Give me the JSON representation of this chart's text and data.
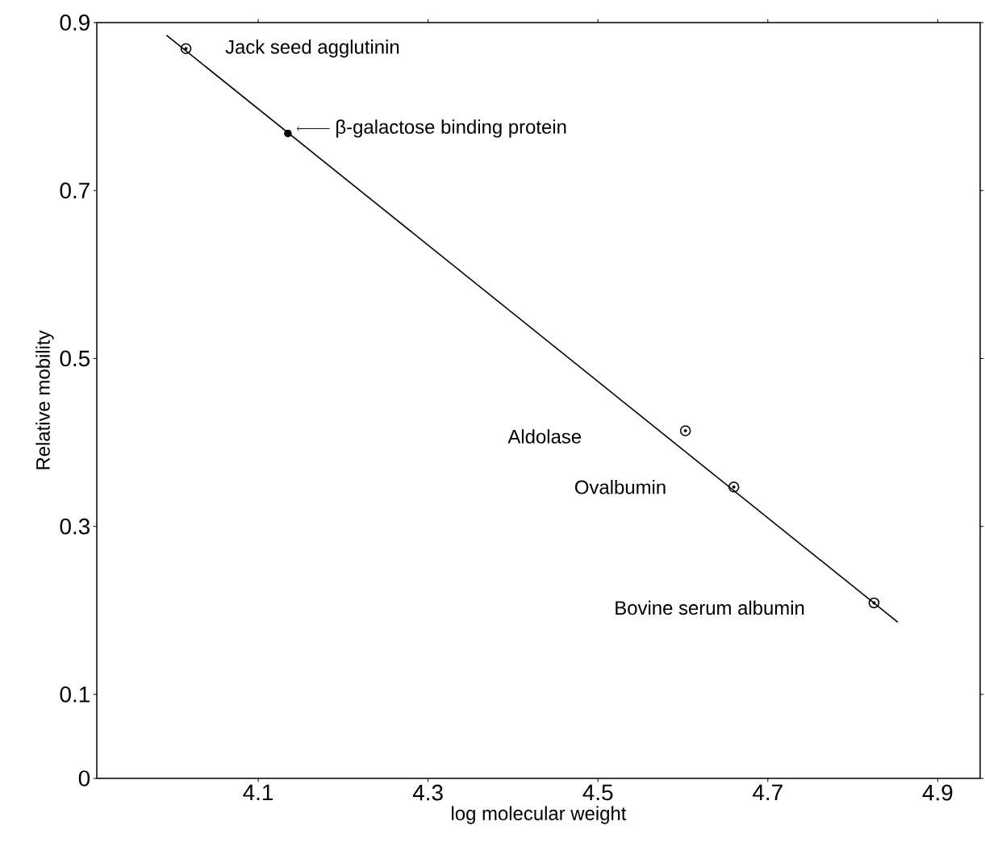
{
  "chart_data": {
    "type": "scatter",
    "xlabel": "log molecular weight",
    "ylabel": "Relative mobility",
    "xlim": [
      3.91,
      4.95
    ],
    "ylim": [
      0,
      0.9
    ],
    "xticks": [
      4.1,
      4.3,
      4.5,
      4.7,
      4.9
    ],
    "yticks": [
      0,
      0.1,
      0.3,
      0.5,
      0.7,
      0.9
    ],
    "marker": "circle",
    "grid": false,
    "series": [
      {
        "color": "#000000",
        "x": [
          4.015,
          4.603,
          4.66,
          4.825
        ],
        "values": [
          0.869,
          0.414,
          0.347,
          0.209
        ]
      },
      {
        "color": "#000000",
        "x": [
          4.135
        ],
        "values": [
          0.768
        ]
      },
      {
        "type": "line",
        "marker": "none",
        "color": "#000000",
        "x": [
          3.992,
          4.853
        ],
        "values": [
          0.885,
          0.186
        ]
      }
    ],
    "annotations": [
      {
        "text": "Jack seed agglutinin",
        "x": 4.015,
        "y": 0.869
      },
      {
        "text": "β-galactose binding protein",
        "x": 4.135,
        "y": 0.768
      },
      "Aldolase",
      "Ovalbumin",
      "Bovine serum albumin"
    ]
  }
}
